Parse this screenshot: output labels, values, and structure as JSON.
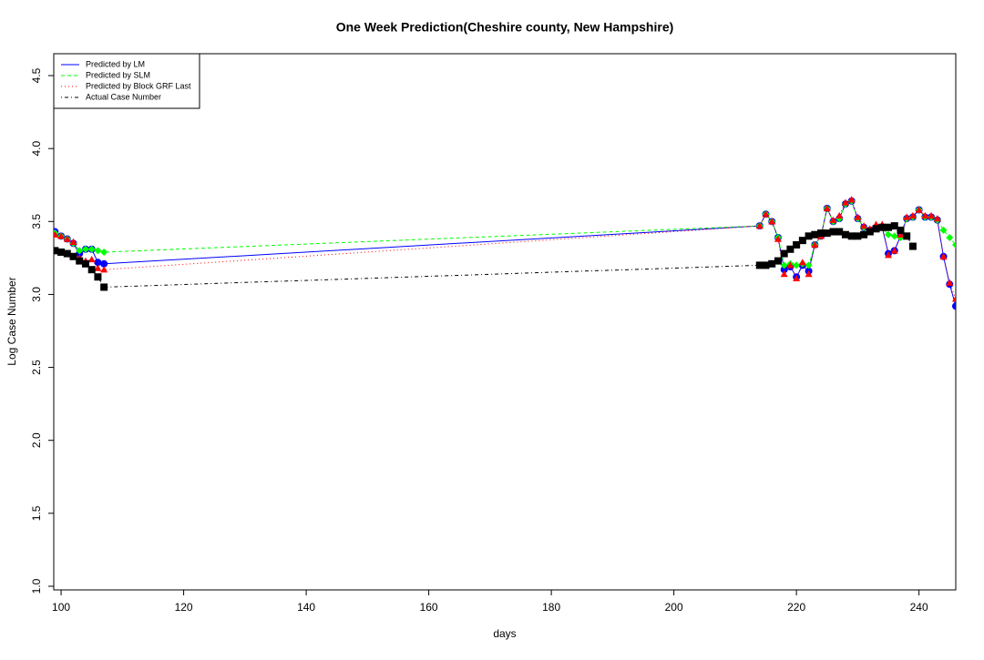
{
  "chart_data": {
    "type": "line",
    "title": "One Week Prediction(Cheshire county, New Hampshire)",
    "x_label": "days",
    "y_label": "Log Case Number",
    "x": [
      99,
      100,
      101,
      102,
      103,
      104,
      105,
      106,
      107,
      214,
      215,
      216,
      217,
      218,
      219,
      220,
      221,
      222,
      223,
      224,
      225,
      226,
      227,
      228,
      229,
      230,
      231,
      232,
      233,
      234,
      235,
      236,
      237,
      238,
      239,
      240,
      241,
      242,
      243,
      244,
      245,
      246
    ],
    "series": [
      {
        "name": "Predicted by LM",
        "color": "#0000ff",
        "dash": "solid",
        "marker": "circle",
        "values": [
          3.43,
          3.4,
          3.38,
          3.35,
          3.28,
          3.31,
          3.31,
          3.22,
          3.21,
          3.47,
          3.55,
          3.5,
          3.39,
          3.17,
          3.19,
          3.12,
          3.2,
          3.16,
          3.34,
          3.4,
          3.59,
          3.5,
          3.52,
          3.62,
          3.64,
          3.52,
          3.46,
          3.44,
          3.46,
          3.46,
          3.28,
          3.3,
          3.4,
          3.52,
          3.53,
          3.58,
          3.53,
          3.53,
          3.51,
          3.26,
          3.07,
          2.92
        ]
      },
      {
        "name": "Predicted by SLM",
        "color": "#00ff00",
        "dash": "dashed",
        "marker": "diamond",
        "values": [
          3.42,
          3.4,
          3.38,
          3.35,
          3.3,
          3.31,
          3.31,
          3.3,
          3.29,
          3.47,
          3.55,
          3.5,
          3.39,
          3.2,
          3.21,
          3.2,
          3.21,
          3.2,
          3.34,
          3.4,
          3.59,
          3.5,
          3.52,
          3.62,
          3.64,
          3.52,
          3.46,
          3.44,
          3.46,
          3.46,
          3.41,
          3.4,
          3.39,
          3.52,
          3.53,
          3.58,
          3.53,
          3.53,
          3.51,
          3.44,
          3.39,
          3.34
        ]
      },
      {
        "name": "Predicted by Block GRF Last",
        "color": "#ff0000",
        "dash": "dotted",
        "marker": "triangle",
        "values": [
          3.41,
          3.4,
          3.38,
          3.36,
          3.25,
          3.23,
          3.24,
          3.18,
          3.17,
          3.47,
          3.55,
          3.5,
          3.38,
          3.14,
          3.2,
          3.11,
          3.22,
          3.14,
          3.34,
          3.4,
          3.59,
          3.51,
          3.54,
          3.63,
          3.65,
          3.53,
          3.47,
          3.45,
          3.48,
          3.48,
          3.27,
          3.3,
          3.41,
          3.53,
          3.54,
          3.58,
          3.54,
          3.54,
          3.52,
          3.26,
          3.08,
          2.97
        ]
      },
      {
        "name": "Actual Case Number",
        "color": "#000000",
        "dash": "dotdash",
        "marker": "square",
        "values": [
          3.3,
          3.29,
          3.28,
          3.26,
          3.23,
          3.21,
          3.17,
          3.12,
          3.05,
          3.2,
          3.2,
          3.21,
          3.23,
          3.28,
          3.31,
          3.34,
          3.37,
          3.4,
          3.41,
          3.42,
          3.42,
          3.43,
          3.43,
          3.41,
          3.4,
          3.4,
          3.41,
          3.43,
          3.45,
          3.46,
          3.46,
          3.47,
          3.44,
          3.4,
          3.33,
          null,
          null,
          null,
          null,
          null,
          null,
          null
        ]
      }
    ],
    "xlim": [
      98.8,
      246
    ],
    "ylim": [
      0.975,
      4.65
    ],
    "xticks": [
      100,
      120,
      140,
      160,
      180,
      200,
      220,
      240
    ],
    "yticks": [
      {
        "value": 1,
        "label": "1.0"
      },
      {
        "value": 1.5,
        "label": "1.5"
      },
      {
        "value": 2,
        "label": "2.0"
      },
      {
        "value": 2.5,
        "label": "2.5"
      },
      {
        "value": 3,
        "label": "3.0"
      },
      {
        "value": 3.5,
        "label": "3.5"
      },
      {
        "value": 4,
        "label": "4.0"
      },
      {
        "value": 4.5,
        "label": "4.5"
      }
    ],
    "legend": "top-left"
  }
}
